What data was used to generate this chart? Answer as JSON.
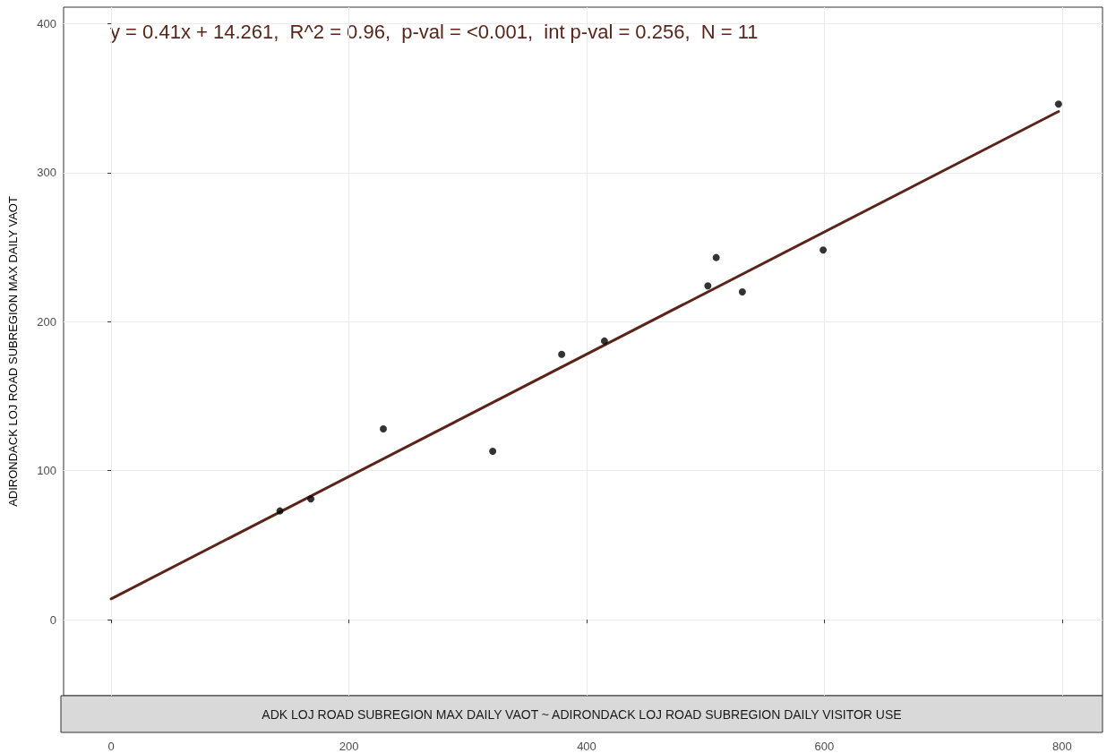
{
  "chart_data": {
    "type": "scatter",
    "ylabel": "ADIRONDACK LOJ ROAD SUBREGION MAX DAILY VAOT",
    "annotations": [
      "y = 0.41x + 14.261,  R^2 = 0.96,  p-val = <0.001,  int p-val = 0.256,  N = 11",
      "ADK LOJ ROAD SUBREGION MAX DAILY VAOT ~ ADIRONDACK LOJ ROAD SUBREGION DAILY VISITOR USE"
    ],
    "series": [
      {
        "color": "#000000",
        "x": [
          142,
          168,
          229,
          321,
          379,
          415,
          502,
          509,
          531,
          599,
          797
        ],
        "values": [
          73,
          81,
          128,
          113,
          178,
          187,
          224,
          243,
          220,
          248,
          346
        ]
      },
      {
        "type": "line",
        "color": "#5c2418",
        "marker": "none",
        "x": [
          0,
          797
        ],
        "values": [
          14,
          341
        ]
      }
    ],
    "xlim": [
      -40,
      834
    ],
    "ylim": [
      -51,
      411
    ],
    "xticks": [
      0,
      200,
      400,
      600,
      800
    ],
    "yticks": [
      0,
      100,
      200,
      300,
      400
    ],
    "grid": true,
    "marker": "circle"
  }
}
